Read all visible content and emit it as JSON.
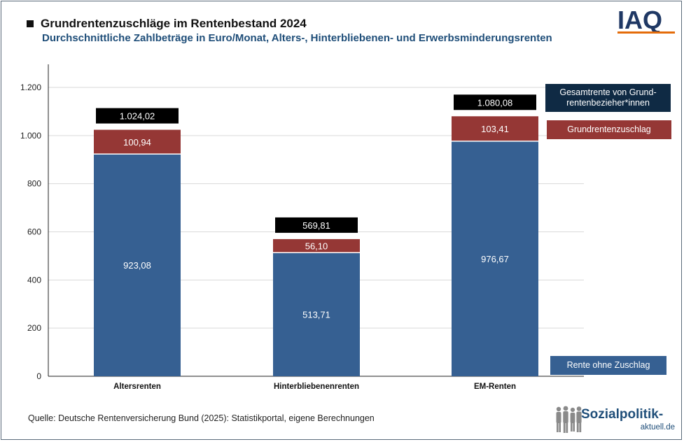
{
  "header": {
    "title": "Grundrentenzuschläge im Rentenbestand 2024",
    "subtitle": "Durchschnittliche Zahlbeträge in Euro/Monat, Alters-, Hinterbliebenen- und Erwerbsminderungsrenten"
  },
  "logo": {
    "text": "IAQ",
    "color": "#1f3864",
    "accent": "#e46c0a"
  },
  "legend": {
    "total": "Gesamtrente von Grund-\nrentenbezieher*innen",
    "zuschlag": "Grundrentenzuschlag",
    "rente": "Rente ohne Zuschlag"
  },
  "footer": {
    "source": "Quelle:  Deutsche Rentenversicherung Bund (2025): Statistikportal, eigene Berechnungen",
    "brand_main": "Sozialpolitik-",
    "brand_sub": "aktuell.de"
  },
  "colors": {
    "rente": "#366092",
    "zuschlag": "#953735",
    "total_box": "#000000",
    "legend_total": "#0f2a44"
  },
  "chart_data": {
    "type": "bar",
    "stacked": true,
    "categories": [
      "Altersrenten",
      "Hinterbliebenenrenten",
      "EM-Renten"
    ],
    "series": [
      {
        "name": "Rente ohne Zuschlag",
        "values": [
          923.08,
          513.71,
          976.67
        ],
        "labels": [
          "923,08",
          "513,71",
          "976,67"
        ]
      },
      {
        "name": "Grundrentenzuschlag",
        "values": [
          100.94,
          56.1,
          103.41
        ],
        "labels": [
          "100,94",
          "56,10",
          "103,41"
        ]
      }
    ],
    "totals": {
      "name": "Gesamtrente von Grundrentenbezieher*innen",
      "values": [
        1024.02,
        569.81,
        1080.08
      ],
      "labels": [
        "1.024,02",
        "569,81",
        "1.080,08"
      ]
    },
    "yticks": [
      0,
      200,
      400,
      600,
      800,
      1000,
      1200
    ],
    "ytick_labels": [
      "0",
      "200",
      "400",
      "600",
      "800",
      "1.000",
      "1.200"
    ],
    "ylim": [
      0,
      1300
    ],
    "grid": true,
    "legend_position": "right"
  }
}
